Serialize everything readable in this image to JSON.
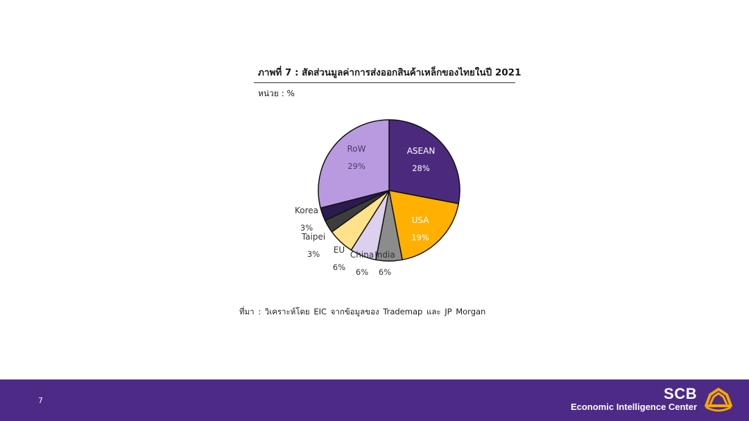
{
  "page": {
    "title": "ภาพที่ 7 : สัดส่วนมูลค่าการส่งออกสินค้าเหล็กของไทยในปี 2021",
    "unit": "หน่วย : %",
    "source": "ที่มา : วิเคราะห์โดย EIC จากข้อมูลของ Trademap และ JP Morgan"
  },
  "footer": {
    "page_number": "7",
    "brand_name": "SCB",
    "brand_subtitle": "Economic Intelligence Center"
  },
  "colors": {
    "footer_bg": "#4c2a85",
    "logo_accent": "#f5a800"
  },
  "icons": {
    "logo": "scb-bowl-logo-icon"
  },
  "chart_data": {
    "type": "pie",
    "title": "ภาพที่ 7 : สัดส่วนมูลค่าการส่งออกสินค้าเหล็กของไทยในปี 2021",
    "unit": "หน่วย : %",
    "start_angle_deg": 0,
    "direction": "clockwise",
    "slices": [
      {
        "label": "ASEAN",
        "value": 28,
        "display": "28%",
        "color": "#4b2a7e"
      },
      {
        "label": "USA",
        "value": 19,
        "display": "19%",
        "color": "#ffb000"
      },
      {
        "label": "India",
        "value": 6,
        "display": "6%",
        "color": "#8c8c8c"
      },
      {
        "label": "China",
        "value": 6,
        "display": "6%",
        "color": "#dcd0ee"
      },
      {
        "label": "EU",
        "value": 6,
        "display": "6%",
        "color": "#ffe28a"
      },
      {
        "label": "Taipei",
        "value": 3,
        "display": "3%",
        "color": "#3d3d3d"
      },
      {
        "label": "Korea",
        "value": 3,
        "display": "3%",
        "color": "#2b1b4e"
      },
      {
        "label": "RoW",
        "value": 29,
        "display": "29%",
        "color": "#b99ae0"
      }
    ]
  }
}
